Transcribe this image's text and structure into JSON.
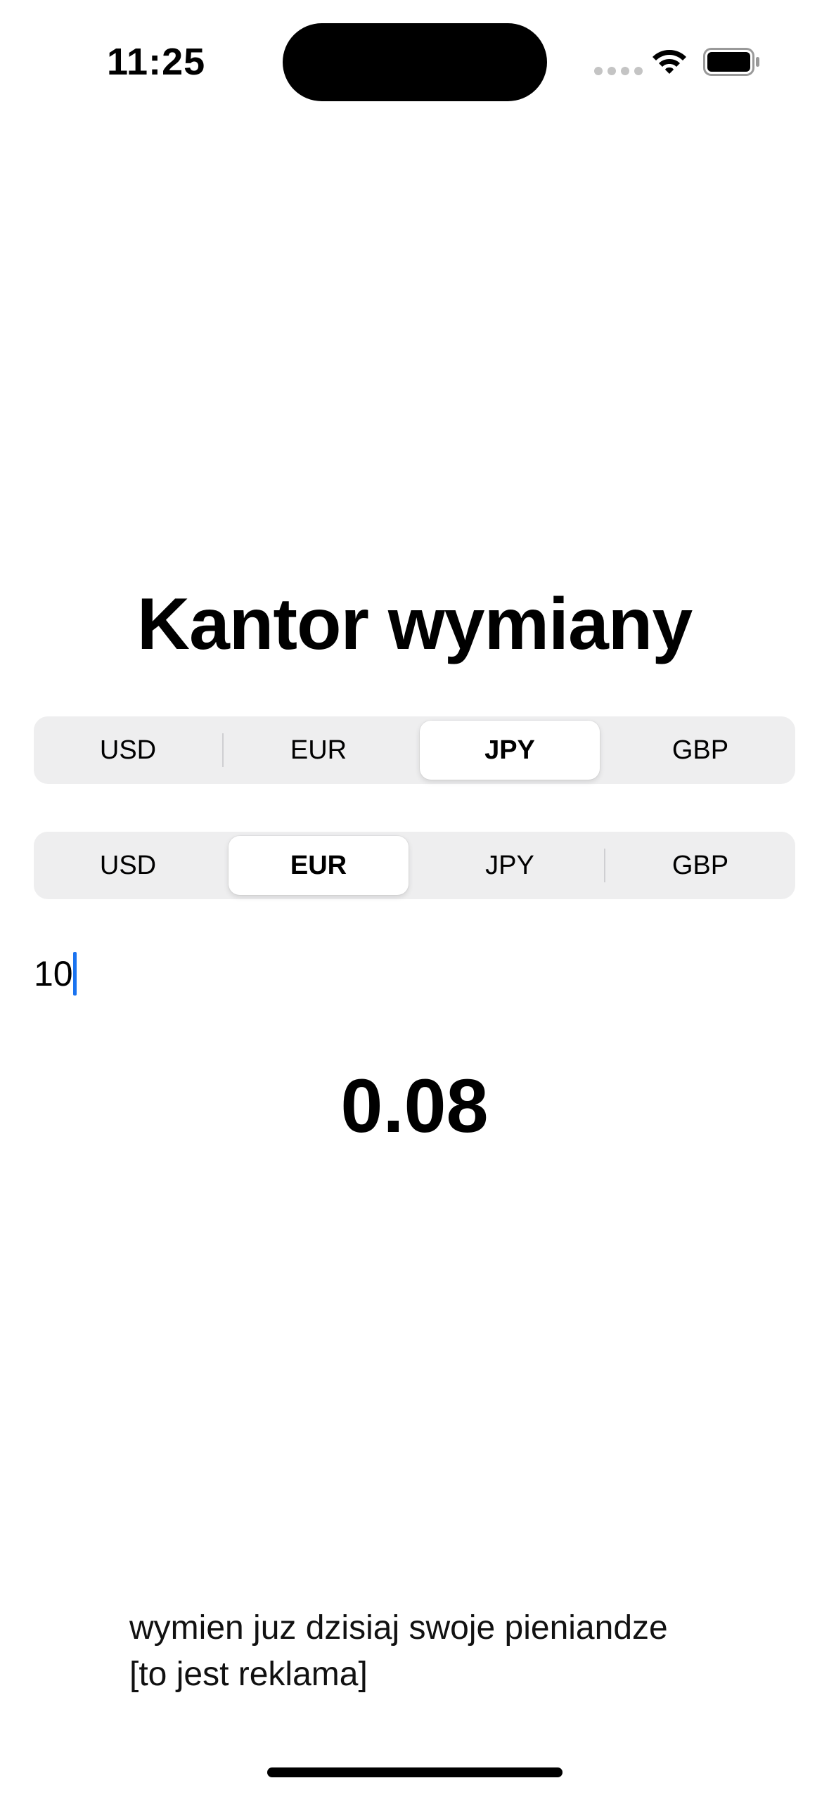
{
  "status_bar": {
    "time": "11:25",
    "icons": [
      "cellular-dots-icon",
      "wifi-icon",
      "battery-icon"
    ]
  },
  "title": "Kantor wymiany",
  "from_currency": {
    "options": [
      "USD",
      "EUR",
      "JPY",
      "GBP"
    ],
    "selected": "JPY"
  },
  "to_currency": {
    "options": [
      "USD",
      "EUR",
      "JPY",
      "GBP"
    ],
    "selected": "EUR"
  },
  "amount_input": {
    "value": "10"
  },
  "result": "0.08",
  "ad": {
    "line1": "wymien juz dzisiaj swoje pieniandze",
    "line2": "[to jest reklama]"
  },
  "colors": {
    "caret": "#1a73f0",
    "segmented_background": "#eeeeef",
    "selected_segment": "#ffffff"
  }
}
